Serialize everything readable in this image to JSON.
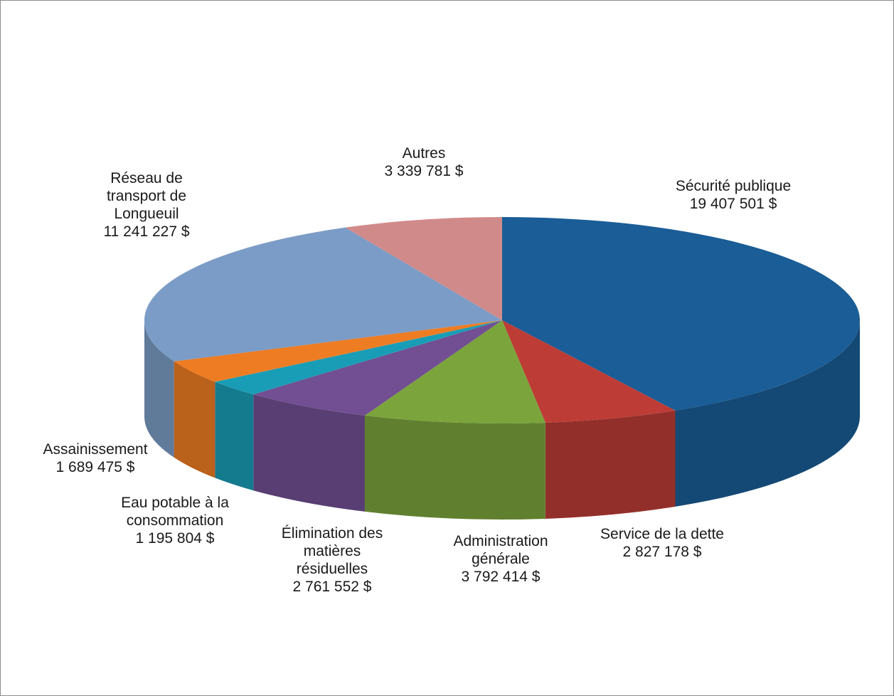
{
  "chart_data": {
    "type": "pie",
    "style": "3d",
    "title": "",
    "currency": "$",
    "slices": [
      {
        "label_lines": [
          "Sécurité publique"
        ],
        "value_text": "19 407 501 $",
        "value": 19407501,
        "color": "#1a5d97"
      },
      {
        "label_lines": [
          "Service de la dette"
        ],
        "value_text": "2 827 178 $",
        "value": 2827178,
        "color": "#bd3c36"
      },
      {
        "label_lines": [
          "Administration",
          "générale"
        ],
        "value_text": "3 792 414 $",
        "value": 3792414,
        "color": "#7ba43c"
      },
      {
        "label_lines": [
          "Élimination des",
          "matières",
          "résiduelles"
        ],
        "value_text": "2 761 552 $",
        "value": 2761552,
        "color": "#714f92"
      },
      {
        "label_lines": [
          "Eau potable à la",
          "consommation"
        ],
        "value_text": "1 195 804 $",
        "value": 1195804,
        "color": "#199db6"
      },
      {
        "label_lines": [
          "Assainissement"
        ],
        "value_text": "1 689 475 $",
        "value": 1689475,
        "color": "#ee7c22"
      },
      {
        "label_lines": [
          "Réseau de",
          "transport de",
          "Longueuil"
        ],
        "value_text": "11 241 227 $",
        "value": 11241227,
        "color": "#7b9cc6"
      },
      {
        "label_lines": [
          "Autres"
        ],
        "value_text": "3 339 781 $",
        "value": 3339781,
        "color": "#d18a8a"
      }
    ]
  }
}
